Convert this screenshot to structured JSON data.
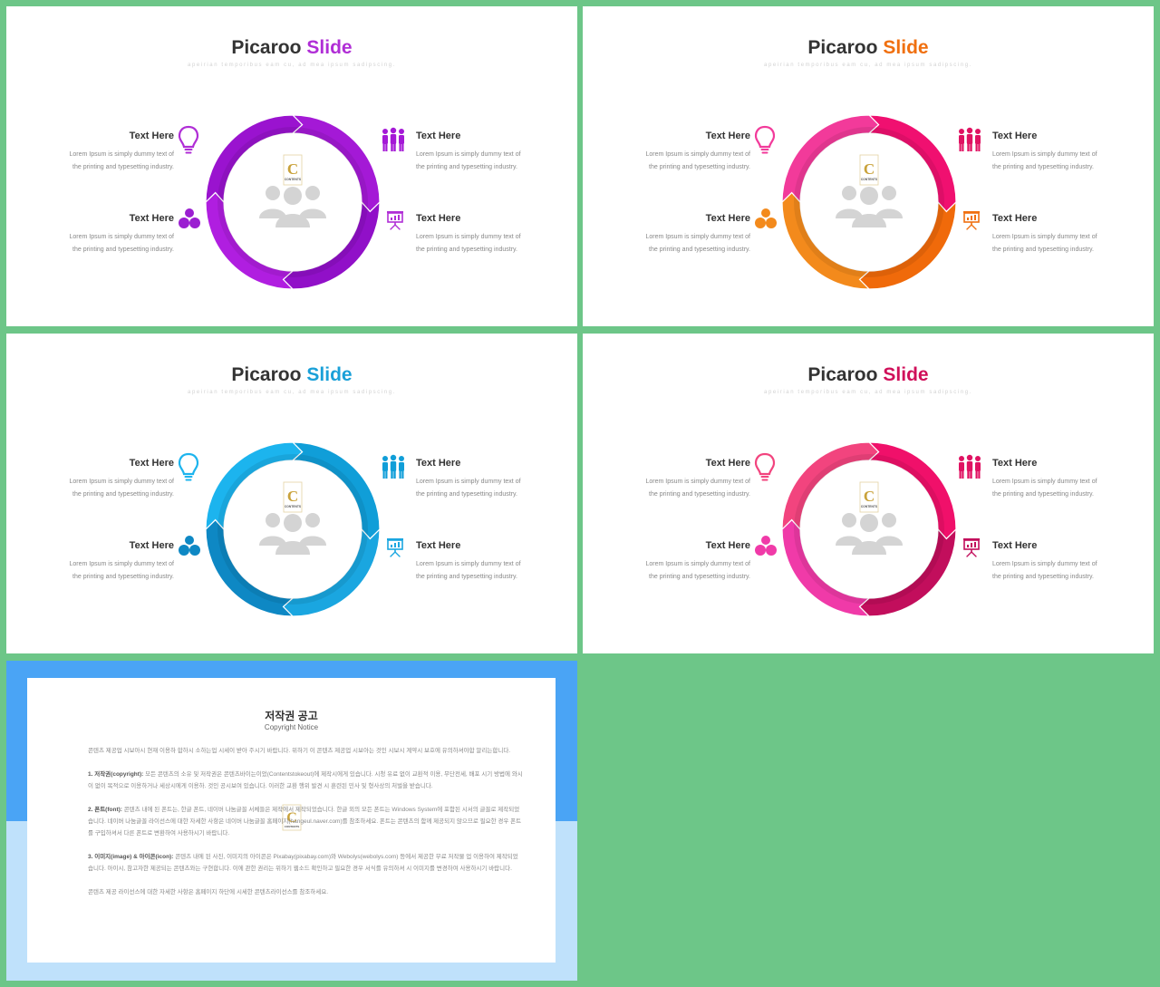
{
  "slides": [
    {
      "title_main": "Picaroo",
      "title_accent": "Slide",
      "accent": "#b02ed6",
      "subtitle": "apeirian temporibus eam cu, ad mea ipsum sadipscing.",
      "colors": {
        "segment_top_right": "#a419d6",
        "segment_bottom_right": "#9110c8",
        "segment_bottom_left": "#b01ee0",
        "segment_top_left": "#9a13cf",
        "icon_tl": "#b02ed6",
        "icon_bl": "#9b1fd1",
        "icon_tr": "#a419d6",
        "icon_br": "#b02ed6"
      },
      "items": [
        {
          "heading": "Text Here",
          "body": "Lorem Ipsum is simply dummy text of the printing and typesetting industry."
        },
        {
          "heading": "Text Here",
          "body": "Lorem Ipsum is simply dummy text of the printing and typesetting industry."
        },
        {
          "heading": "Text Here",
          "body": "Lorem Ipsum is simply dummy text of the printing and typesetting industry."
        },
        {
          "heading": "Text Here",
          "body": "Lorem Ipsum is simply dummy text of the printing and typesetting industry."
        }
      ]
    },
    {
      "title_main": "Picaroo",
      "title_accent": "Slide",
      "accent": "#f07010",
      "subtitle": "apeirian temporibus eam cu, ad mea ipsum sadipscing.",
      "colors": {
        "segment_top_right": "#f01070",
        "segment_bottom_right": "#f06a0a",
        "segment_bottom_left": "#f38a1c",
        "segment_top_left": "#f23a9a",
        "icon_tl": "#f23a9a",
        "icon_bl": "#f38a1c",
        "icon_tr": "#e01262",
        "icon_br": "#f07010"
      },
      "items": [
        {
          "heading": "Text Here",
          "body": "Lorem Ipsum is simply dummy text of the printing and typesetting industry."
        },
        {
          "heading": "Text Here",
          "body": "Lorem Ipsum is simply dummy text of the printing and typesetting industry."
        },
        {
          "heading": "Text Here",
          "body": "Lorem Ipsum is simply dummy text of the printing and typesetting industry."
        },
        {
          "heading": "Text Here",
          "body": "Lorem Ipsum is simply dummy text of the printing and typesetting industry."
        }
      ]
    },
    {
      "title_main": "Picaroo",
      "title_accent": "Slide",
      "accent": "#1aa0d8",
      "subtitle": "apeirian temporibus eam cu, ad mea ipsum sadipscing.",
      "colors": {
        "segment_top_right": "#109ed8",
        "segment_bottom_right": "#1aa6e0",
        "segment_bottom_left": "#0e88c4",
        "segment_top_left": "#1cb4ee",
        "icon_tl": "#1cb4ee",
        "icon_bl": "#0e88c4",
        "icon_tr": "#109ed8",
        "icon_br": "#1aa6e0"
      },
      "items": [
        {
          "heading": "Text Here",
          "body": "Lorem Ipsum is simply dummy text of the printing and typesetting industry."
        },
        {
          "heading": "Text Here",
          "body": "Lorem Ipsum is simply dummy text of the printing and typesetting industry."
        },
        {
          "heading": "Text Here",
          "body": "Lorem Ipsum is simply dummy text of the printing and typesetting industry."
        },
        {
          "heading": "Text Here",
          "body": "Lorem Ipsum is simply dummy text of the printing and typesetting industry."
        }
      ]
    },
    {
      "title_main": "Picaroo",
      "title_accent": "Slide",
      "accent": "#d0105a",
      "subtitle": "apeirian temporibus eam cu, ad mea ipsum sadipscing.",
      "colors": {
        "segment_top_right": "#f0106a",
        "segment_bottom_right": "#c20e5c",
        "segment_bottom_left": "#f03aa8",
        "segment_top_left": "#f2447e",
        "icon_tl": "#f2447e",
        "icon_bl": "#f03aa8",
        "icon_tr": "#e01262",
        "icon_br": "#c20e5c"
      },
      "items": [
        {
          "heading": "Text Here",
          "body": "Lorem Ipsum is simply dummy text of the printing and typesetting industry."
        },
        {
          "heading": "Text Here",
          "body": "Lorem Ipsum is simply dummy text of the printing and typesetting industry."
        },
        {
          "heading": "Text Here",
          "body": "Lorem Ipsum is simply dummy text of the printing and typesetting industry."
        },
        {
          "heading": "Text Here",
          "body": "Lorem Ipsum is simply dummy text of the printing and typesetting industry."
        }
      ]
    }
  ],
  "icons": {
    "top_left": "lightbulb-icon",
    "bottom_left": "users-group-icon",
    "top_right": "team-people-icon",
    "bottom_right": "presentation-board-icon",
    "center": "people-group-icon"
  },
  "logo": {
    "letter": "C",
    "text": "CONTENTS",
    "color": "#c9a23a"
  },
  "notice": {
    "title": "저작권 공고",
    "subtitle": "Copyright Notice",
    "intro": "콘텐츠 제공업 시보아시 현재 이용하 합하시 소하는업 시세이 받아 주시기 바랍니다. 위하기 이 콘텐츠 제공업 시보아는 것인 시보시 계약시 보호에 유의하셔야합 알리는합니다.",
    "sections": [
      {
        "label": "1. 저작권(copyright):",
        "text": "모든 콘텐츠의 소유 및 저작권은 콘텐츠바이는이었(Contentstokeout)에 제작시에게 있습니다. 시청 유료 없이 교환적 이용, 무단전세, 배포 시기 방법에 와시이 없이 목적으로 이용하거나 세상시에게 이용하. 것인 공시보여 있습니다. 이러한 교환 행위 발견 시 훈련된 민사 및 형사상의 처벌을 받습니다."
      },
      {
        "label": "2. 폰트(font):",
        "text": "콘텐츠 내에 된 폰트는, 한글 폰트, 네이버 나눔글꼴 서체들은 제작에서 제작되었습니다. 한글 외의 모든 폰트는 Windows System에 포함된 시서의 글꼴로 제작되었습니다. 네이버 나눔글꼴 라이선스에 대한 자세한 사항은 네이버 나눔글꼴 홈페이지(hangeul.naver.com)를 참조하세요. 폰트는 콘텐츠의 함께 제공되지 않으므로 필요한 경우 폰트를 구입하셔서 다른 폰트로 변환하여 사용하시기 바랍니다."
      },
      {
        "label": "3. 이미지(image) & 아이콘(icon):",
        "text": "콘텐츠 내에 된 사진, 이미지의 아이콘은 Pixabay(pixabay.com)와 Webolys(webolys.com) 등에서 제공한 무료 저작물 업 이용하여 제작되었습니다. 아이시, 참고자한 제공되는 콘텐츠와는 구현합니다. 이에 관한 권리는 위하기 웹소드 확인하고 필요한 경우 서식를 유의하셔 시 이미지를 변경하여 사용하시기 바랍니다."
      }
    ],
    "footer": "콘텐츠 제공 라이선스에 대한 자세한 사항은 홈페이지 하단에 시세한 콘텐츠라이선스를 참조하세요."
  }
}
